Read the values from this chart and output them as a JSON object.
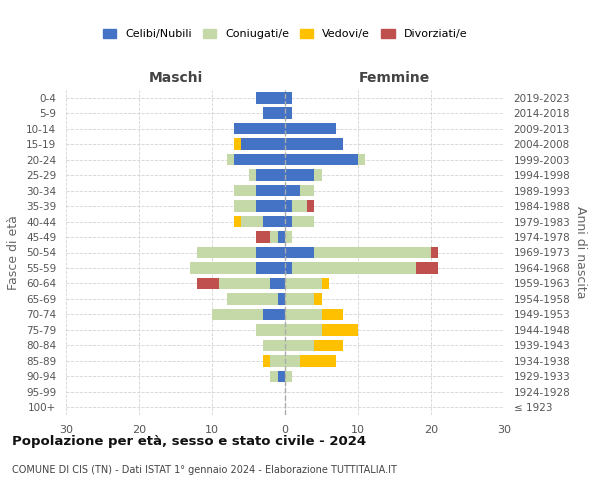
{
  "age_groups": [
    "100+",
    "95-99",
    "90-94",
    "85-89",
    "80-84",
    "75-79",
    "70-74",
    "65-69",
    "60-64",
    "55-59",
    "50-54",
    "45-49",
    "40-44",
    "35-39",
    "30-34",
    "25-29",
    "20-24",
    "15-19",
    "10-14",
    "5-9",
    "0-4"
  ],
  "birth_years": [
    "≤ 1923",
    "1924-1928",
    "1929-1933",
    "1934-1938",
    "1939-1943",
    "1944-1948",
    "1949-1953",
    "1954-1958",
    "1959-1963",
    "1964-1968",
    "1969-1973",
    "1974-1978",
    "1979-1983",
    "1984-1988",
    "1989-1993",
    "1994-1998",
    "1999-2003",
    "2004-2008",
    "2009-2013",
    "2014-2018",
    "2019-2023"
  ],
  "males": {
    "celibi": [
      0,
      0,
      1,
      0,
      0,
      0,
      3,
      1,
      2,
      4,
      4,
      1,
      3,
      4,
      4,
      4,
      7,
      6,
      7,
      3,
      4
    ],
    "coniugati": [
      0,
      0,
      1,
      2,
      3,
      4,
      7,
      7,
      7,
      9,
      8,
      1,
      3,
      3,
      3,
      1,
      1,
      0,
      0,
      0,
      0
    ],
    "vedovi": [
      0,
      0,
      0,
      1,
      0,
      0,
      0,
      0,
      0,
      0,
      0,
      0,
      1,
      0,
      0,
      0,
      0,
      1,
      0,
      0,
      0
    ],
    "divorziati": [
      0,
      0,
      0,
      0,
      0,
      0,
      0,
      0,
      3,
      0,
      0,
      2,
      0,
      0,
      0,
      0,
      0,
      0,
      0,
      0,
      0
    ]
  },
  "females": {
    "nubili": [
      0,
      0,
      0,
      0,
      0,
      0,
      0,
      0,
      0,
      1,
      4,
      0,
      1,
      1,
      2,
      4,
      10,
      8,
      7,
      1,
      1
    ],
    "coniugate": [
      0,
      0,
      1,
      2,
      4,
      5,
      5,
      4,
      5,
      17,
      16,
      1,
      3,
      2,
      2,
      1,
      1,
      0,
      0,
      0,
      0
    ],
    "vedove": [
      0,
      0,
      0,
      5,
      4,
      5,
      3,
      1,
      1,
      0,
      0,
      0,
      0,
      0,
      0,
      0,
      0,
      0,
      0,
      0,
      0
    ],
    "divorziate": [
      0,
      0,
      0,
      0,
      0,
      0,
      0,
      0,
      0,
      3,
      1,
      0,
      0,
      1,
      0,
      0,
      0,
      0,
      0,
      0,
      0
    ]
  },
  "colors": {
    "celibi": "#4472c4",
    "coniugati": "#c5d9a8",
    "vedovi": "#ffc000",
    "divorziati": "#c0504d"
  },
  "xlim": 30,
  "title": "Popolazione per età, sesso e stato civile - 2024",
  "subtitle": "COMUNE DI CIS (TN) - Dati ISTAT 1° gennaio 2024 - Elaborazione TUTTITALIA.IT",
  "ylabel_left": "Fasce di età",
  "ylabel_right": "Anni di nascita",
  "xlabel_left": "Maschi",
  "xlabel_right": "Femmine"
}
